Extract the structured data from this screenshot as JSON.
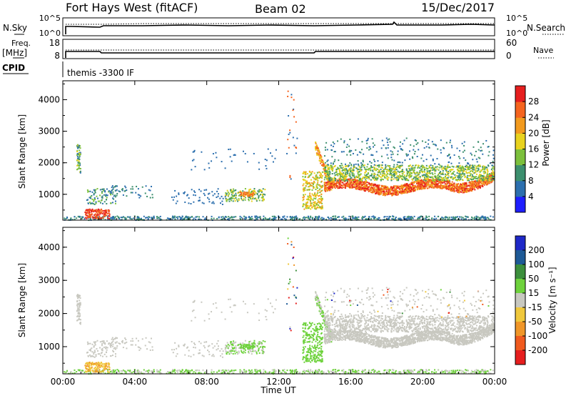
{
  "header": {
    "station": "Fort Hays West (fitACF)",
    "beam": "Beam 02",
    "date": "15/Dec/2017"
  },
  "strips": {
    "noise_left_label": "N.Sky",
    "noise_left_ticks": [
      "10^5",
      "10^0"
    ],
    "noise_right_label": "N.Search",
    "noise_right_ticks": [
      "10^5",
      "10^0"
    ],
    "freq_label_1": "Freq.",
    "freq_label_2": "[MHz]",
    "freq_left_ticks": [
      "18",
      "8"
    ],
    "freq_right_label": "Nave",
    "freq_right_ticks": [
      "60",
      "0"
    ],
    "cpid_label": "CPID",
    "cpid_text": "themis -3300 IF"
  },
  "chart_data": [
    {
      "type": "heatmap",
      "panel": "power",
      "ylabel": "Slant Range [km]",
      "xlabel": "",
      "x_range_hours": [
        0,
        24
      ],
      "ylim": [
        180,
        4600
      ],
      "y_ticks": [
        "1000",
        "2000",
        "3000",
        "4000"
      ],
      "colorbar_label": "Power [dB]",
      "colorbar_ticks": [
        "4",
        "8",
        "12",
        "16",
        "20",
        "24",
        "28"
      ],
      "colorbar_colors": [
        "#1e1eff",
        "#2c6fae",
        "#3c8f6e",
        "#7cc03c",
        "#e8d21e",
        "#f29a1e",
        "#f5641e",
        "#e61e1e"
      ]
    },
    {
      "type": "heatmap",
      "panel": "velocity",
      "ylabel": "Slant Range [km]",
      "xlabel": "Time UT",
      "x_range_hours": [
        0,
        24
      ],
      "ylim": [
        180,
        4600
      ],
      "y_ticks": [
        "1000",
        "2000",
        "3000",
        "4000"
      ],
      "x_ticks": [
        "00:00",
        "04:00",
        "08:00",
        "12:00",
        "16:00",
        "20:00",
        "00:00"
      ],
      "colorbar_label": "Velocity [m s⁻¹]",
      "colorbar_ticks": [
        "200",
        "100",
        "50",
        "15",
        "-15",
        "-50",
        "-100",
        "-200"
      ],
      "colorbar_colors": [
        "#1e28c8",
        "#1e5a96",
        "#3c8f3c",
        "#6ed23c",
        "#c8c8c0",
        "#f0c83c",
        "#f09628",
        "#f05a1e",
        "#e61e1e"
      ]
    }
  ]
}
